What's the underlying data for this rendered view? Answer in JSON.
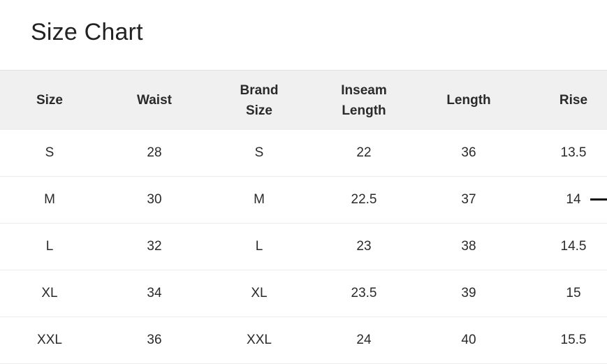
{
  "title": "Size Chart",
  "headers": [
    "Size",
    "Waist",
    "Brand\nSize",
    "Inseam\nLength",
    "Length",
    "Rise"
  ],
  "rows": [
    [
      "S",
      "28",
      "S",
      "22",
      "36",
      "13.5"
    ],
    [
      "M",
      "30",
      "M",
      "22.5",
      "37",
      "14"
    ],
    [
      "L",
      "32",
      "L",
      "23",
      "38",
      "14.5"
    ],
    [
      "XL",
      "34",
      "XL",
      "23.5",
      "39",
      "15"
    ],
    [
      "XXL",
      "36",
      "XXL",
      "24",
      "40",
      "15.5"
    ]
  ]
}
